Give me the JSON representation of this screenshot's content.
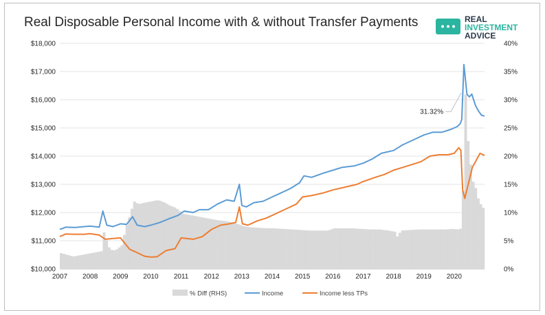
{
  "chart_data": {
    "type": "bar+line",
    "title": "Real Disposable Personal Income with & without Transfer Payments",
    "logo": {
      "line1": "REAL",
      "line2": "INVESTMENT",
      "line3": "ADVICE"
    },
    "x_ticks": [
      "2007",
      "2008",
      "2009",
      "2010",
      "2011",
      "2012",
      "2013",
      "2014",
      "2015",
      "2016",
      "2017",
      "2018",
      "2019",
      "2020"
    ],
    "y_left": {
      "min": 10000,
      "max": 18000,
      "ticks": [
        "$10,000",
        "$11,000",
        "$12,000",
        "$13,000",
        "$14,000",
        "$15,000",
        "$16,000",
        "$17,000",
        "$18,000"
      ]
    },
    "y_right": {
      "min": 0,
      "max": 40,
      "ticks": [
        "0%",
        "5%",
        "10%",
        "15%",
        "20%",
        "25%",
        "30%",
        "35%",
        "40%"
      ]
    },
    "annotation": {
      "text": "31.32%",
      "x": 2020.3,
      "y": 31.32
    },
    "legend": [
      {
        "name": "% Diff (RHS)",
        "color": "#d9d9d9",
        "kind": "bar"
      },
      {
        "name": "Income",
        "color": "#5b9bd5",
        "kind": "line"
      },
      {
        "name": "Income less TPs",
        "color": "#ed7d31",
        "kind": "line"
      }
    ],
    "series": [
      {
        "name": "Income",
        "color": "#5b9bd5",
        "points": [
          [
            2007,
            11400
          ],
          [
            2007.2,
            11480
          ],
          [
            2007.5,
            11470
          ],
          [
            2007.8,
            11500
          ],
          [
            2008,
            11520
          ],
          [
            2008.3,
            11480
          ],
          [
            2008.42,
            12050
          ],
          [
            2008.55,
            11550
          ],
          [
            2008.75,
            11500
          ],
          [
            2009,
            11600
          ],
          [
            2009.2,
            11580
          ],
          [
            2009.4,
            11850
          ],
          [
            2009.55,
            11550
          ],
          [
            2009.8,
            11500
          ],
          [
            2010,
            11550
          ],
          [
            2010.3,
            11650
          ],
          [
            2010.6,
            11780
          ],
          [
            2010.9,
            11900
          ],
          [
            2011.1,
            12050
          ],
          [
            2011.4,
            12000
          ],
          [
            2011.6,
            12100
          ],
          [
            2011.9,
            12100
          ],
          [
            2012.2,
            12300
          ],
          [
            2012.5,
            12450
          ],
          [
            2012.75,
            12400
          ],
          [
            2012.92,
            13000
          ],
          [
            2013.0,
            12250
          ],
          [
            2013.15,
            12200
          ],
          [
            2013.4,
            12350
          ],
          [
            2013.7,
            12400
          ],
          [
            2014,
            12550
          ],
          [
            2014.3,
            12700
          ],
          [
            2014.6,
            12850
          ],
          [
            2014.9,
            13050
          ],
          [
            2015.05,
            13300
          ],
          [
            2015.3,
            13250
          ],
          [
            2015.7,
            13400
          ],
          [
            2016,
            13500
          ],
          [
            2016.3,
            13600
          ],
          [
            2016.7,
            13650
          ],
          [
            2017,
            13750
          ],
          [
            2017.3,
            13900
          ],
          [
            2017.6,
            14100
          ],
          [
            2018,
            14200
          ],
          [
            2018.3,
            14400
          ],
          [
            2018.6,
            14550
          ],
          [
            2019,
            14750
          ],
          [
            2019.3,
            14850
          ],
          [
            2019.6,
            14850
          ],
          [
            2019.9,
            14950
          ],
          [
            2020.1,
            15050
          ],
          [
            2020.2,
            15150
          ],
          [
            2020.25,
            15300
          ],
          [
            2020.32,
            17250
          ],
          [
            2020.42,
            16200
          ],
          [
            2020.5,
            16100
          ],
          [
            2020.58,
            16200
          ],
          [
            2020.7,
            15800
          ],
          [
            2020.8,
            15600
          ],
          [
            2020.9,
            15450
          ],
          [
            2021.0,
            15420
          ]
        ]
      },
      {
        "name": "Income less TPs",
        "color": "#ed7d31",
        "points": [
          [
            2007,
            11150
          ],
          [
            2007.2,
            11240
          ],
          [
            2007.5,
            11230
          ],
          [
            2007.8,
            11230
          ],
          [
            2008,
            11250
          ],
          [
            2008.3,
            11200
          ],
          [
            2008.5,
            11050
          ],
          [
            2008.75,
            11080
          ],
          [
            2009,
            11100
          ],
          [
            2009.3,
            10700
          ],
          [
            2009.5,
            10600
          ],
          [
            2009.8,
            10450
          ],
          [
            2010,
            10420
          ],
          [
            2010.2,
            10430
          ],
          [
            2010.5,
            10650
          ],
          [
            2010.8,
            10720
          ],
          [
            2011.0,
            11100
          ],
          [
            2011.4,
            11050
          ],
          [
            2011.7,
            11150
          ],
          [
            2012.0,
            11400
          ],
          [
            2012.3,
            11550
          ],
          [
            2012.6,
            11600
          ],
          [
            2012.8,
            11650
          ],
          [
            2012.92,
            12200
          ],
          [
            2013.02,
            11600
          ],
          [
            2013.2,
            11550
          ],
          [
            2013.5,
            11700
          ],
          [
            2013.8,
            11800
          ],
          [
            2014.1,
            11950
          ],
          [
            2014.5,
            12150
          ],
          [
            2014.8,
            12300
          ],
          [
            2015.0,
            12550
          ],
          [
            2015.3,
            12600
          ],
          [
            2015.7,
            12700
          ],
          [
            2016,
            12800
          ],
          [
            2016.4,
            12900
          ],
          [
            2016.8,
            13000
          ],
          [
            2017,
            13100
          ],
          [
            2017.4,
            13250
          ],
          [
            2017.7,
            13350
          ],
          [
            2018,
            13500
          ],
          [
            2018.3,
            13600
          ],
          [
            2018.6,
            13700
          ],
          [
            2018.9,
            13800
          ],
          [
            2019.2,
            14000
          ],
          [
            2019.5,
            14050
          ],
          [
            2019.8,
            14050
          ],
          [
            2020.0,
            14100
          ],
          [
            2020.15,
            14300
          ],
          [
            2020.22,
            14200
          ],
          [
            2020.28,
            12800
          ],
          [
            2020.35,
            12500
          ],
          [
            2020.45,
            12950
          ],
          [
            2020.6,
            13600
          ],
          [
            2020.75,
            13900
          ],
          [
            2020.85,
            14100
          ],
          [
            2020.95,
            14050
          ],
          [
            2021.0,
            14030
          ]
        ]
      }
    ],
    "bars": {
      "name": "% Diff (RHS)",
      "color": "#d9d9d9",
      "points": [
        [
          2007,
          2.8
        ],
        [
          2007.2,
          2.5
        ],
        [
          2007.4,
          2.2
        ],
        [
          2007.6,
          2.4
        ],
        [
          2007.8,
          2.6
        ],
        [
          2008.0,
          2.8
        ],
        [
          2008.2,
          3.0
        ],
        [
          2008.38,
          3.2
        ],
        [
          2008.42,
          6.8
        ],
        [
          2008.55,
          4.0
        ],
        [
          2008.7,
          3.2
        ],
        [
          2008.85,
          3.5
        ],
        [
          2009.0,
          4.2
        ],
        [
          2009.15,
          7.5
        ],
        [
          2009.3,
          10.0
        ],
        [
          2009.4,
          12.0
        ],
        [
          2009.55,
          11.5
        ],
        [
          2009.8,
          11.8
        ],
        [
          2010.0,
          12.0
        ],
        [
          2010.2,
          12.2
        ],
        [
          2010.4,
          11.8
        ],
        [
          2010.6,
          11.2
        ],
        [
          2010.8,
          10.8
        ],
        [
          2011.0,
          9.8
        ],
        [
          2011.2,
          9.6
        ],
        [
          2011.4,
          9.4
        ],
        [
          2011.6,
          9.2
        ],
        [
          2011.8,
          9.0
        ],
        [
          2012.0,
          8.8
        ],
        [
          2012.2,
          8.6
        ],
        [
          2012.4,
          8.5
        ],
        [
          2012.6,
          8.3
        ],
        [
          2012.8,
          8.0
        ],
        [
          2013.0,
          7.6
        ],
        [
          2013.2,
          7.4
        ],
        [
          2013.5,
          7.3
        ],
        [
          2013.8,
          7.2
        ],
        [
          2014.0,
          7.2
        ],
        [
          2014.3,
          7.1
        ],
        [
          2014.6,
          7.0
        ],
        [
          2014.9,
          6.9
        ],
        [
          2015.2,
          6.8
        ],
        [
          2015.5,
          6.8
        ],
        [
          2015.8,
          6.8
        ],
        [
          2016.0,
          7.2
        ],
        [
          2016.3,
          7.2
        ],
        [
          2016.6,
          7.2
        ],
        [
          2016.9,
          7.1
        ],
        [
          2017.2,
          7.0
        ],
        [
          2017.5,
          7.0
        ],
        [
          2017.8,
          6.8
        ],
        [
          2018.0,
          6.6
        ],
        [
          2018.1,
          5.6
        ],
        [
          2018.2,
          6.8
        ],
        [
          2018.5,
          6.9
        ],
        [
          2018.8,
          7.0
        ],
        [
          2019.1,
          7.0
        ],
        [
          2019.4,
          7.0
        ],
        [
          2019.7,
          7.0
        ],
        [
          2019.9,
          7.1
        ],
        [
          2020.1,
          7.0
        ],
        [
          2020.2,
          7.2
        ],
        [
          2020.27,
          16.5
        ],
        [
          2020.33,
          31.3
        ],
        [
          2020.4,
          23.5
        ],
        [
          2020.5,
          18.5
        ],
        [
          2020.58,
          15.5
        ],
        [
          2020.66,
          14.5
        ],
        [
          2020.75,
          12.5
        ],
        [
          2020.83,
          11.5
        ],
        [
          2020.91,
          10.8
        ],
        [
          2020.97,
          11.0
        ]
      ]
    }
  }
}
